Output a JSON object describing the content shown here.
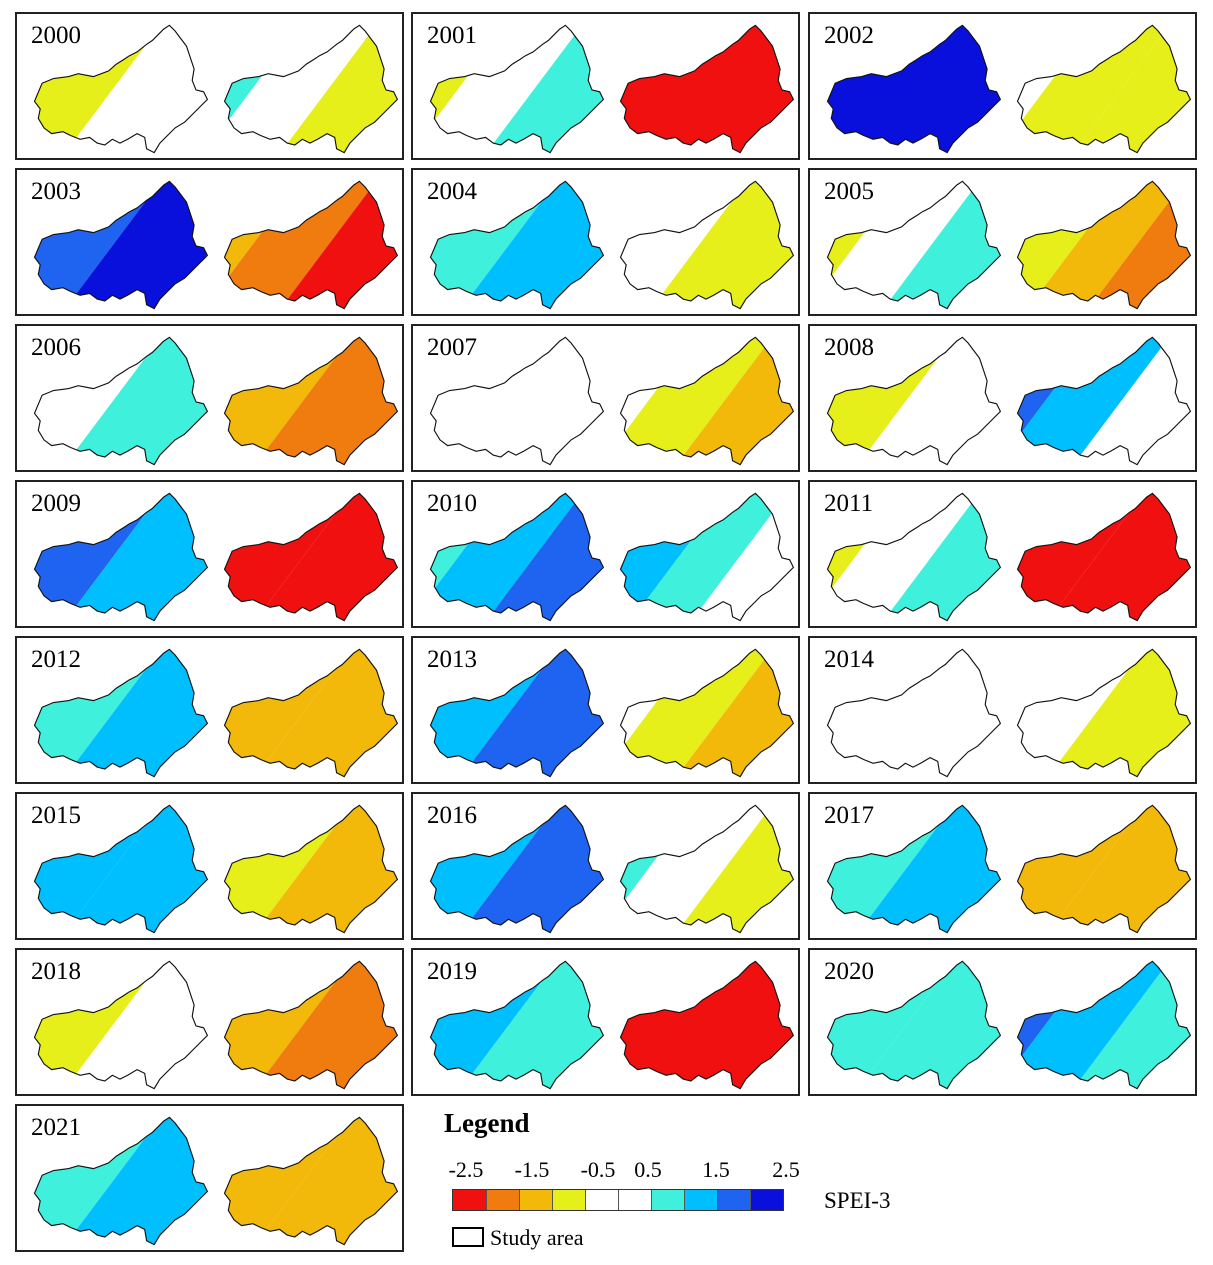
{
  "panels": [
    {
      "year": "2000",
      "maps": [
        {
          "fill": "zones",
          "zones": [
            "#f2b90a",
            "#e6ef1a",
            "#ffffff"
          ]
        },
        {
          "fill": "zones",
          "zones": [
            "#00bfff",
            "#3ff0dc",
            "#ffffff",
            "#e6ef1a"
          ]
        }
      ]
    },
    {
      "year": "2001",
      "maps": [
        {
          "fill": "zones",
          "zones": [
            "#e6ef1a",
            "#e6ef1a",
            "#ffffff",
            "#3ff0dc"
          ]
        },
        {
          "fill": "solid",
          "zones": [
            "#f01010"
          ]
        }
      ]
    },
    {
      "year": "2002",
      "maps": [
        {
          "fill": "solid",
          "zones": [
            "#0a10dc"
          ]
        },
        {
          "fill": "zones",
          "zones": [
            "#3ff0dc",
            "#ffffff",
            "#e6ef1a",
            "#e6ef1a"
          ]
        }
      ]
    },
    {
      "year": "2003",
      "maps": [
        {
          "fill": "zones",
          "zones": [
            "#1e64f0",
            "#1e64f0",
            "#0a10dc"
          ]
        },
        {
          "fill": "zones",
          "zones": [
            "#e6ef1a",
            "#f2b90a",
            "#f07c10",
            "#f01010"
          ]
        }
      ]
    },
    {
      "year": "2004",
      "maps": [
        {
          "fill": "zones",
          "zones": [
            "#ffffff",
            "#3ff0dc",
            "#00bfff"
          ]
        },
        {
          "fill": "zones",
          "zones": [
            "#3ff0dc",
            "#ffffff",
            "#e6ef1a"
          ]
        }
      ]
    },
    {
      "year": "2005",
      "maps": [
        {
          "fill": "zones",
          "zones": [
            "#f07c10",
            "#e6ef1a",
            "#ffffff",
            "#3ff0dc"
          ]
        },
        {
          "fill": "zones",
          "zones": [
            "#00bfff",
            "#ffffff",
            "#e6ef1a",
            "#f2b90a",
            "#f07c10"
          ]
        }
      ]
    },
    {
      "year": "2006",
      "maps": [
        {
          "fill": "zones",
          "zones": [
            "#e6ef1a",
            "#ffffff",
            "#3ff0dc"
          ]
        },
        {
          "fill": "zones",
          "zones": [
            "#e6ef1a",
            "#f2b90a",
            "#f07c10"
          ]
        }
      ]
    },
    {
      "year": "2007",
      "maps": [
        {
          "fill": "zones",
          "zones": [
            "#ffffff"
          ]
        },
        {
          "fill": "zones",
          "zones": [
            "#00bfff",
            "#ffffff",
            "#e6ef1a",
            "#f2b90a"
          ]
        }
      ]
    },
    {
      "year": "2008",
      "maps": [
        {
          "fill": "zones",
          "zones": [
            "#e6ef1a",
            "#e6ef1a",
            "#ffffff"
          ]
        },
        {
          "fill": "zones",
          "zones": [
            "#0a10dc",
            "#1e64f0",
            "#00bfff",
            "#ffffff"
          ]
        }
      ]
    },
    {
      "year": "2009",
      "maps": [
        {
          "fill": "zones",
          "zones": [
            "#1e64f0",
            "#1e64f0",
            "#00bfff"
          ]
        },
        {
          "fill": "zones",
          "zones": [
            "#f07c10",
            "#f01010",
            "#f01010"
          ]
        }
      ]
    },
    {
      "year": "2010",
      "maps": [
        {
          "fill": "zones",
          "zones": [
            "#ffffff",
            "#3ff0dc",
            "#00bfff",
            "#1e64f0"
          ]
        },
        {
          "fill": "zones",
          "zones": [
            "#0a10dc",
            "#1e64f0",
            "#00bfff",
            "#3ff0dc",
            "#ffffff"
          ]
        }
      ]
    },
    {
      "year": "2011",
      "maps": [
        {
          "fill": "zones",
          "zones": [
            "#f2b90a",
            "#e6ef1a",
            "#ffffff",
            "#3ff0dc"
          ]
        },
        {
          "fill": "zones",
          "zones": [
            "#f07c10",
            "#f01010",
            "#f01010"
          ]
        }
      ]
    },
    {
      "year": "2012",
      "maps": [
        {
          "fill": "zones",
          "zones": [
            "#ffffff",
            "#3ff0dc",
            "#00bfff"
          ]
        },
        {
          "fill": "zones",
          "zones": [
            "#e6ef1a",
            "#f2b90a",
            "#f2b90a"
          ]
        }
      ]
    },
    {
      "year": "2013",
      "maps": [
        {
          "fill": "zones",
          "zones": [
            "#3ff0dc",
            "#00bfff",
            "#1e64f0"
          ]
        },
        {
          "fill": "zones",
          "zones": [
            "#3ff0dc",
            "#ffffff",
            "#e6ef1a",
            "#f2b90a"
          ]
        }
      ]
    },
    {
      "year": "2014",
      "maps": [
        {
          "fill": "zones",
          "zones": [
            "#ffffff"
          ]
        },
        {
          "fill": "zones",
          "zones": [
            "#00bfff",
            "#ffffff",
            "#e6ef1a"
          ]
        }
      ]
    },
    {
      "year": "2015",
      "maps": [
        {
          "fill": "zones",
          "zones": [
            "#3ff0dc",
            "#00bfff",
            "#00bfff"
          ]
        },
        {
          "fill": "zones",
          "zones": [
            "#ffffff",
            "#e6ef1a",
            "#f2b90a"
          ]
        }
      ]
    },
    {
      "year": "2016",
      "maps": [
        {
          "fill": "zones",
          "zones": [
            "#3ff0dc",
            "#00bfff",
            "#1e64f0"
          ]
        },
        {
          "fill": "zones",
          "zones": [
            "#1e64f0",
            "#3ff0dc",
            "#ffffff",
            "#e6ef1a"
          ]
        }
      ]
    },
    {
      "year": "2017",
      "maps": [
        {
          "fill": "zones",
          "zones": [
            "#ffffff",
            "#3ff0dc",
            "#00bfff"
          ]
        },
        {
          "fill": "zones",
          "zones": [
            "#e6ef1a",
            "#f2b90a",
            "#f2b90a"
          ]
        }
      ]
    },
    {
      "year": "2018",
      "maps": [
        {
          "fill": "zones",
          "zones": [
            "#e6ef1a",
            "#e6ef1a",
            "#ffffff"
          ]
        },
        {
          "fill": "zones",
          "zones": [
            "#e6ef1a",
            "#f2b90a",
            "#f07c10"
          ]
        }
      ]
    },
    {
      "year": "2019",
      "maps": [
        {
          "fill": "zones",
          "zones": [
            "#3ff0dc",
            "#00bfff",
            "#3ff0dc"
          ]
        },
        {
          "fill": "solid",
          "zones": [
            "#f01010"
          ]
        }
      ]
    },
    {
      "year": "2020",
      "maps": [
        {
          "fill": "zones",
          "zones": [
            "#ffffff",
            "#3ff0dc",
            "#3ff0dc"
          ]
        },
        {
          "fill": "zones",
          "zones": [
            "#0a10dc",
            "#1e64f0",
            "#00bfff",
            "#3ff0dc"
          ]
        }
      ]
    },
    {
      "year": "2021",
      "maps": [
        {
          "fill": "zones",
          "zones": [
            "#ffffff",
            "#3ff0dc",
            "#00bfff"
          ]
        },
        {
          "fill": "zones",
          "zones": [
            "#e6ef1a",
            "#f2b90a",
            "#f2b90a"
          ]
        }
      ]
    }
  ],
  "legend": {
    "title": "Legend",
    "ticks": [
      "-2.5",
      "-1.5",
      "-0.5",
      "0.5",
      "1.5",
      "2.5"
    ],
    "colors": [
      "#f01010",
      "#f07c10",
      "#f2b90a",
      "#e6ef1a",
      "#ffffff",
      "#ffffff",
      "#3ff0dc",
      "#00bfff",
      "#1e64f0",
      "#0a10dc"
    ],
    "index_label": "SPEI-3",
    "study_area_label": "Study area"
  }
}
